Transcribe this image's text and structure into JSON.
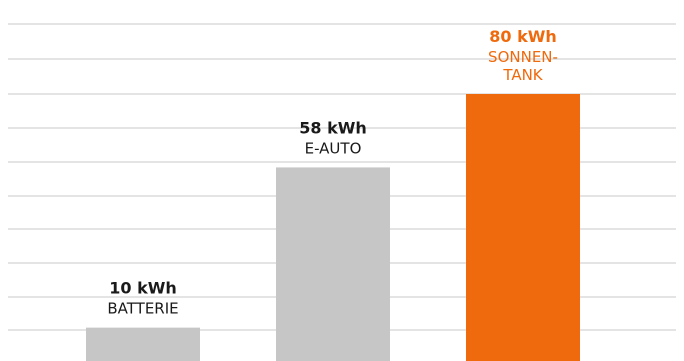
{
  "chart_data": {
    "type": "bar",
    "categories": [
      "BATTERIE",
      "E-AUTO",
      "SONNEN-TANK"
    ],
    "category_lines": [
      [
        "BATTERIE"
      ],
      [
        "E-AUTO"
      ],
      [
        "SONNEN-",
        "TANK"
      ]
    ],
    "values": [
      10,
      58,
      80
    ],
    "value_labels": [
      "10 kWh",
      "58 kWh",
      "80 kWh"
    ],
    "unit": "kWh",
    "ylim": [
      0,
      80
    ],
    "grid": true,
    "colors": {
      "default_bar": "#c6c6c6",
      "highlight_bar": "#ee6a0d",
      "default_text": "#1a1a1a",
      "highlight_text": "#ee6a0d",
      "grid": "#c8c8c8"
    },
    "highlight_index": 2
  }
}
